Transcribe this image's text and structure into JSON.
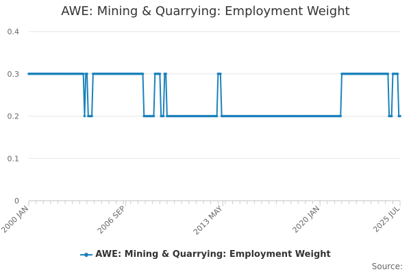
{
  "chart_data": {
    "type": "line",
    "title": "AWE: Mining & Quarrying: Employment Weight",
    "xlabel": "",
    "ylabel": "",
    "ylim": [
      0,
      0.4
    ],
    "yticks": [
      "0",
      "0.1",
      "0.2",
      "0.3",
      "0.4"
    ],
    "x_range": [
      "2000-01",
      "2025-07"
    ],
    "xticks": [
      "2000 JAN",
      "2006 SEP",
      "2013 MAY",
      "2020 JAN",
      "2025 JUL"
    ],
    "grid": true,
    "legend_position": "bottom",
    "series": [
      {
        "name": "AWE: Mining & Quarrying: Employment Weight",
        "color": "#1a81bc",
        "segments": [
          {
            "start": "2000-01",
            "end": "2003-10",
            "value": 0.3
          },
          {
            "start": "2003-11",
            "end": "2003-11",
            "value": 0.2
          },
          {
            "start": "2003-12",
            "end": "2004-01",
            "value": 0.3
          },
          {
            "start": "2004-02",
            "end": "2004-05",
            "value": 0.2
          },
          {
            "start": "2004-06",
            "end": "2007-11",
            "value": 0.3
          },
          {
            "start": "2007-12",
            "end": "2008-08",
            "value": 0.2
          },
          {
            "start": "2008-09",
            "end": "2009-01",
            "value": 0.3
          },
          {
            "start": "2009-02",
            "end": "2009-04",
            "value": 0.2
          },
          {
            "start": "2009-05",
            "end": "2009-06",
            "value": 0.3
          },
          {
            "start": "2009-07",
            "end": "2012-12",
            "value": 0.2
          },
          {
            "start": "2013-01",
            "end": "2013-03",
            "value": 0.3
          },
          {
            "start": "2013-04",
            "end": "2021-06",
            "value": 0.2
          },
          {
            "start": "2021-07",
            "end": "2024-09",
            "value": 0.3
          },
          {
            "start": "2024-10",
            "end": "2024-12",
            "value": 0.2
          },
          {
            "start": "2025-01",
            "end": "2025-05",
            "value": 0.3
          },
          {
            "start": "2025-06",
            "end": "2025-07",
            "value": 0.2
          }
        ]
      }
    ]
  },
  "legend": {
    "label": "AWE: Mining & Quarrying: Employment Weight"
  },
  "footer": {
    "source": "Source:"
  }
}
